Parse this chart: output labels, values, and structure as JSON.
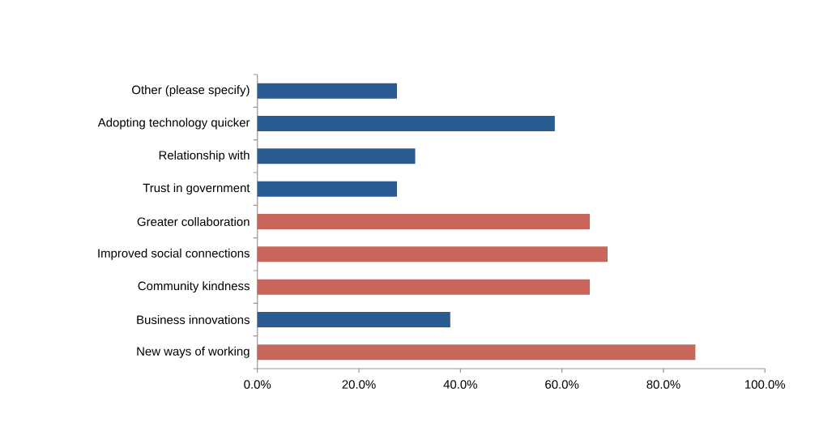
{
  "chart_data": {
    "type": "bar",
    "orientation": "horizontal",
    "categories": [
      "Other (please specify)",
      "Adopting technology quicker",
      "Relationship with",
      "Trust in government",
      "Greater collaboration",
      "Improved social connections",
      "Community kindness",
      "Business innovations",
      "New ways of working"
    ],
    "values": [
      27.5,
      58.6,
      31.1,
      27.5,
      65.5,
      69.0,
      65.5,
      38.0,
      86.3
    ],
    "colors": [
      "#2a5b93",
      "#2a5b93",
      "#2a5b93",
      "#2a5b93",
      "#c9665c",
      "#c9665c",
      "#c9665c",
      "#2a5b93",
      "#c9665c"
    ],
    "xlim": [
      0,
      100
    ],
    "xticks": [
      {
        "value": 0,
        "label": "0.0%"
      },
      {
        "value": 20,
        "label": "20.0%"
      },
      {
        "value": 40,
        "label": "40.0%"
      },
      {
        "value": 60,
        "label": "60.0%"
      },
      {
        "value": 80,
        "label": "80.0%"
      },
      {
        "value": 100,
        "label": "100.0%"
      }
    ]
  }
}
